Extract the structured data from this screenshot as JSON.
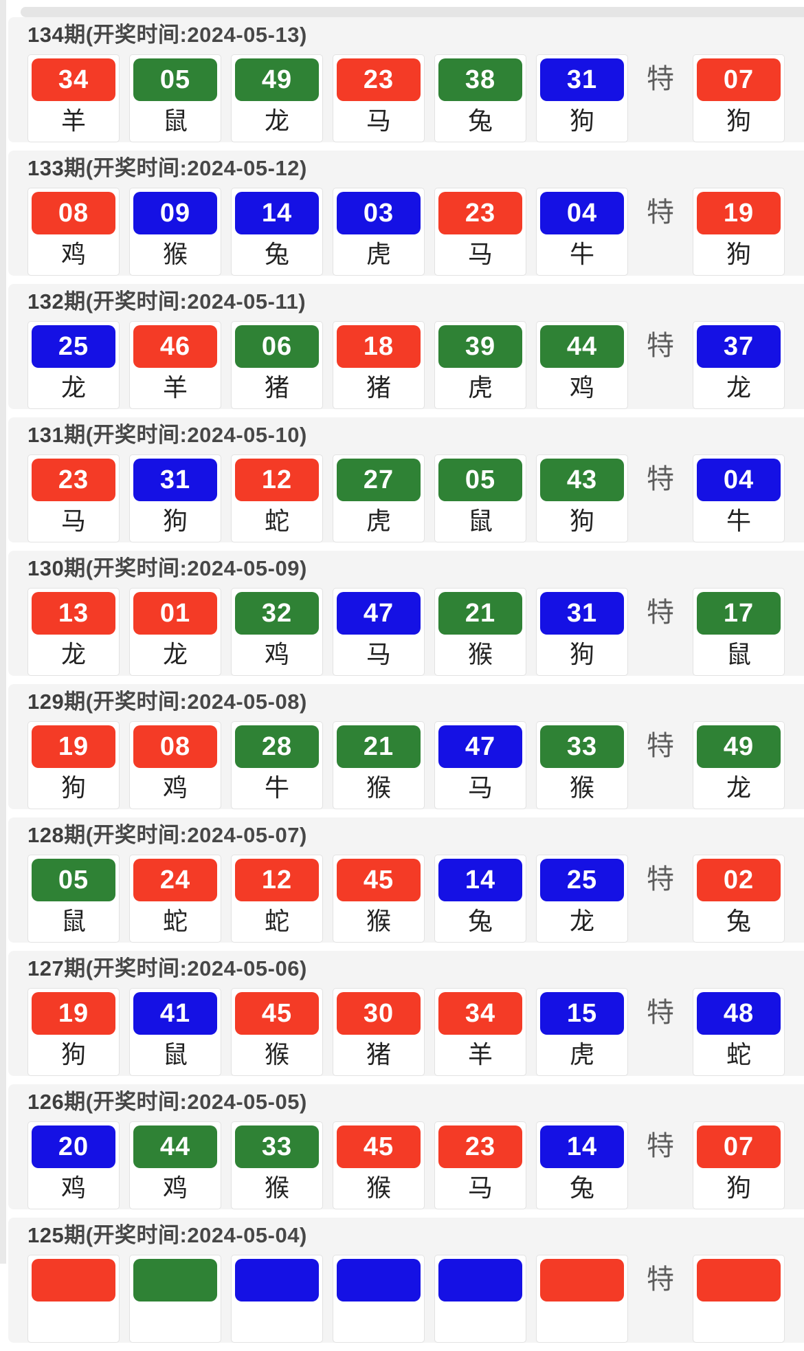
{
  "page": {
    "special_label": "特",
    "colors": {
      "red": "#f43b26",
      "green": "#2f8235",
      "blue": "#1511e4"
    }
  },
  "draws": [
    {
      "period": "134",
      "header_suffix": "期(开奖时间:2024-05-13)",
      "balls": [
        {
          "num": "34",
          "color": "red",
          "animal": "羊"
        },
        {
          "num": "05",
          "color": "green",
          "animal": "鼠"
        },
        {
          "num": "49",
          "color": "green",
          "animal": "龙"
        },
        {
          "num": "23",
          "color": "red",
          "animal": "马"
        },
        {
          "num": "38",
          "color": "green",
          "animal": "兔"
        },
        {
          "num": "31",
          "color": "blue",
          "animal": "狗"
        }
      ],
      "special": {
        "num": "07",
        "color": "red",
        "animal": "狗"
      }
    },
    {
      "period": "133",
      "header_suffix": "期(开奖时间:2024-05-12)",
      "balls": [
        {
          "num": "08",
          "color": "red",
          "animal": "鸡"
        },
        {
          "num": "09",
          "color": "blue",
          "animal": "猴"
        },
        {
          "num": "14",
          "color": "blue",
          "animal": "兔"
        },
        {
          "num": "03",
          "color": "blue",
          "animal": "虎"
        },
        {
          "num": "23",
          "color": "red",
          "animal": "马"
        },
        {
          "num": "04",
          "color": "blue",
          "animal": "牛"
        }
      ],
      "special": {
        "num": "19",
        "color": "red",
        "animal": "狗"
      }
    },
    {
      "period": "132",
      "header_suffix": "期(开奖时间:2024-05-11)",
      "balls": [
        {
          "num": "25",
          "color": "blue",
          "animal": "龙"
        },
        {
          "num": "46",
          "color": "red",
          "animal": "羊"
        },
        {
          "num": "06",
          "color": "green",
          "animal": "猪"
        },
        {
          "num": "18",
          "color": "red",
          "animal": "猪"
        },
        {
          "num": "39",
          "color": "green",
          "animal": "虎"
        },
        {
          "num": "44",
          "color": "green",
          "animal": "鸡"
        }
      ],
      "special": {
        "num": "37",
        "color": "blue",
        "animal": "龙"
      }
    },
    {
      "period": "131",
      "header_suffix": "期(开奖时间:2024-05-10)",
      "balls": [
        {
          "num": "23",
          "color": "red",
          "animal": "马"
        },
        {
          "num": "31",
          "color": "blue",
          "animal": "狗"
        },
        {
          "num": "12",
          "color": "red",
          "animal": "蛇"
        },
        {
          "num": "27",
          "color": "green",
          "animal": "虎"
        },
        {
          "num": "05",
          "color": "green",
          "animal": "鼠"
        },
        {
          "num": "43",
          "color": "green",
          "animal": "狗"
        }
      ],
      "special": {
        "num": "04",
        "color": "blue",
        "animal": "牛"
      }
    },
    {
      "period": "130",
      "header_suffix": "期(开奖时间:2024-05-09)",
      "balls": [
        {
          "num": "13",
          "color": "red",
          "animal": "龙"
        },
        {
          "num": "01",
          "color": "red",
          "animal": "龙"
        },
        {
          "num": "32",
          "color": "green",
          "animal": "鸡"
        },
        {
          "num": "47",
          "color": "blue",
          "animal": "马"
        },
        {
          "num": "21",
          "color": "green",
          "animal": "猴"
        },
        {
          "num": "31",
          "color": "blue",
          "animal": "狗"
        }
      ],
      "special": {
        "num": "17",
        "color": "green",
        "animal": "鼠"
      }
    },
    {
      "period": "129",
      "header_suffix": "期(开奖时间:2024-05-08)",
      "balls": [
        {
          "num": "19",
          "color": "red",
          "animal": "狗"
        },
        {
          "num": "08",
          "color": "red",
          "animal": "鸡"
        },
        {
          "num": "28",
          "color": "green",
          "animal": "牛"
        },
        {
          "num": "21",
          "color": "green",
          "animal": "猴"
        },
        {
          "num": "47",
          "color": "blue",
          "animal": "马"
        },
        {
          "num": "33",
          "color": "green",
          "animal": "猴"
        }
      ],
      "special": {
        "num": "49",
        "color": "green",
        "animal": "龙"
      }
    },
    {
      "period": "128",
      "header_suffix": "期(开奖时间:2024-05-07)",
      "balls": [
        {
          "num": "05",
          "color": "green",
          "animal": "鼠"
        },
        {
          "num": "24",
          "color": "red",
          "animal": "蛇"
        },
        {
          "num": "12",
          "color": "red",
          "animal": "蛇"
        },
        {
          "num": "45",
          "color": "red",
          "animal": "猴"
        },
        {
          "num": "14",
          "color": "blue",
          "animal": "兔"
        },
        {
          "num": "25",
          "color": "blue",
          "animal": "龙"
        }
      ],
      "special": {
        "num": "02",
        "color": "red",
        "animal": "兔"
      }
    },
    {
      "period": "127",
      "header_suffix": "期(开奖时间:2024-05-06)",
      "balls": [
        {
          "num": "19",
          "color": "red",
          "animal": "狗"
        },
        {
          "num": "41",
          "color": "blue",
          "animal": "鼠"
        },
        {
          "num": "45",
          "color": "red",
          "animal": "猴"
        },
        {
          "num": "30",
          "color": "red",
          "animal": "猪"
        },
        {
          "num": "34",
          "color": "red",
          "animal": "羊"
        },
        {
          "num": "15",
          "color": "blue",
          "animal": "虎"
        }
      ],
      "special": {
        "num": "48",
        "color": "blue",
        "animal": "蛇"
      }
    },
    {
      "period": "126",
      "header_suffix": "期(开奖时间:2024-05-05)",
      "balls": [
        {
          "num": "20",
          "color": "blue",
          "animal": "鸡"
        },
        {
          "num": "44",
          "color": "green",
          "animal": "鸡"
        },
        {
          "num": "33",
          "color": "green",
          "animal": "猴"
        },
        {
          "num": "45",
          "color": "red",
          "animal": "猴"
        },
        {
          "num": "23",
          "color": "red",
          "animal": "马"
        },
        {
          "num": "14",
          "color": "blue",
          "animal": "兔"
        }
      ],
      "special": {
        "num": "07",
        "color": "red",
        "animal": "狗"
      }
    },
    {
      "period": "125",
      "header_suffix": "期(开奖时间:2024-05-04)",
      "balls": [
        {
          "num": "",
          "color": "red",
          "animal": ""
        },
        {
          "num": "",
          "color": "green",
          "animal": ""
        },
        {
          "num": "",
          "color": "blue",
          "animal": ""
        },
        {
          "num": "",
          "color": "blue",
          "animal": ""
        },
        {
          "num": "",
          "color": "blue",
          "animal": ""
        },
        {
          "num": "",
          "color": "red",
          "animal": ""
        }
      ],
      "special": {
        "num": "",
        "color": "red",
        "animal": ""
      }
    }
  ]
}
